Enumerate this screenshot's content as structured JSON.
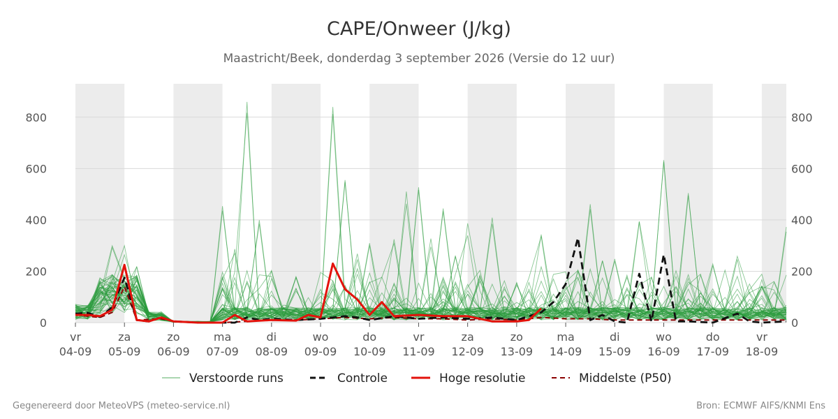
{
  "chart_data": {
    "type": "line",
    "title": "CAPE/Onweer (J/kg)",
    "subtitle": "Maastricht/Beek, donderdag  3 september 2026 (Versie do 12 uur)",
    "xlabel": "",
    "ylabel": "",
    "ylim": [
      0,
      930
    ],
    "yticks": [
      0,
      200,
      400,
      600,
      800
    ],
    "grid": true,
    "x_unit": "days since 04-09 00:00",
    "xlim": [
      0,
      14.5
    ],
    "day_ticks": [
      {
        "day": "vr",
        "date": "04-09"
      },
      {
        "day": "za",
        "date": "05-09"
      },
      {
        "day": "zo",
        "date": "06-09"
      },
      {
        "day": "ma",
        "date": "07-09"
      },
      {
        "day": "di",
        "date": "08-09"
      },
      {
        "day": "wo",
        "date": "09-09"
      },
      {
        "day": "do",
        "date": "10-09"
      },
      {
        "day": "vr",
        "date": "11-09"
      },
      {
        "day": "za",
        "date": "12-09"
      },
      {
        "day": "zo",
        "date": "13-09"
      },
      {
        "day": "ma",
        "date": "14-09"
      },
      {
        "day": "di",
        "date": "15-09"
      },
      {
        "day": "wo",
        "date": "16-09"
      },
      {
        "day": "do",
        "date": "17-09"
      },
      {
        "day": "vr",
        "date": "18-09"
      }
    ],
    "weekend_shading": [
      [
        0,
        1
      ],
      [
        2,
        3
      ],
      [
        4,
        5
      ],
      [
        6,
        7
      ],
      [
        8,
        9
      ],
      [
        10,
        11
      ],
      [
        12,
        13
      ],
      [
        14,
        15
      ]
    ],
    "series": [
      {
        "name": "Controle",
        "style": "dashed",
        "color": "#111111",
        "points": [
          [
            0,
            35
          ],
          [
            0.25,
            38
          ],
          [
            0.5,
            22
          ],
          [
            0.75,
            60
          ],
          [
            1,
            175
          ],
          [
            1.25,
            10
          ],
          [
            1.5,
            5
          ],
          [
            1.75,
            20
          ],
          [
            2,
            5
          ],
          [
            2.5,
            0
          ],
          [
            3,
            0
          ],
          [
            3.25,
            0
          ],
          [
            3.5,
            20
          ],
          [
            3.75,
            10
          ],
          [
            4,
            15
          ],
          [
            4.5,
            10
          ],
          [
            5,
            15
          ],
          [
            5.5,
            25
          ],
          [
            5.75,
            20
          ],
          [
            6,
            10
          ],
          [
            6.5,
            25
          ],
          [
            7,
            15
          ],
          [
            7.5,
            20
          ],
          [
            8,
            15
          ],
          [
            8.5,
            20
          ],
          [
            9,
            10
          ],
          [
            9.5,
            40
          ],
          [
            9.75,
            80
          ],
          [
            10,
            150
          ],
          [
            10.25,
            330
          ],
          [
            10.5,
            10
          ],
          [
            10.75,
            30
          ],
          [
            11,
            5
          ],
          [
            11.25,
            0
          ],
          [
            11.5,
            190
          ],
          [
            11.75,
            5
          ],
          [
            12,
            265
          ],
          [
            12.25,
            5
          ],
          [
            12.5,
            5
          ],
          [
            13,
            0
          ],
          [
            13.5,
            35
          ],
          [
            13.75,
            5
          ],
          [
            14,
            0
          ],
          [
            14.5,
            5
          ]
        ]
      },
      {
        "name": "Hoge resolutie",
        "style": "solid",
        "color": "#e3120b",
        "points": [
          [
            0,
            30
          ],
          [
            0.25,
            30
          ],
          [
            0.5,
            25
          ],
          [
            0.75,
            50
          ],
          [
            1,
            225
          ],
          [
            1.25,
            10
          ],
          [
            1.5,
            5
          ],
          [
            1.75,
            20
          ],
          [
            2,
            5
          ],
          [
            2.5,
            0
          ],
          [
            3,
            0
          ],
          [
            3.25,
            30
          ],
          [
            3.5,
            5
          ],
          [
            4,
            10
          ],
          [
            4.5,
            8
          ],
          [
            4.75,
            30
          ],
          [
            5,
            20
          ],
          [
            5.25,
            230
          ],
          [
            5.5,
            130
          ],
          [
            5.75,
            90
          ],
          [
            6,
            30
          ],
          [
            6.25,
            80
          ],
          [
            6.5,
            25
          ],
          [
            7,
            30
          ],
          [
            7.5,
            25
          ],
          [
            8,
            25
          ],
          [
            8.5,
            5
          ],
          [
            9,
            5
          ],
          [
            9.25,
            10
          ],
          [
            9.5,
            55
          ]
        ]
      },
      {
        "name": "Middelste (P50)",
        "style": "dashed",
        "color": "#8b0000",
        "points": [
          [
            0,
            30
          ],
          [
            0.5,
            20
          ],
          [
            0.75,
            40
          ],
          [
            1,
            140
          ],
          [
            1.25,
            10
          ],
          [
            1.75,
            15
          ],
          [
            2,
            5
          ],
          [
            2.5,
            0
          ],
          [
            3,
            0
          ],
          [
            3.5,
            5
          ],
          [
            4,
            10
          ],
          [
            4.5,
            10
          ],
          [
            5,
            15
          ],
          [
            5.5,
            20
          ],
          [
            6,
            15
          ],
          [
            6.5,
            20
          ],
          [
            7,
            15
          ],
          [
            7.5,
            15
          ],
          [
            8,
            10
          ],
          [
            8.5,
            15
          ],
          [
            9,
            10
          ],
          [
            9.5,
            20
          ],
          [
            10,
            15
          ],
          [
            10.5,
            15
          ],
          [
            11,
            10
          ],
          [
            11.5,
            10
          ],
          [
            12,
            10
          ],
          [
            12.5,
            10
          ],
          [
            13,
            10
          ],
          [
            13.5,
            10
          ],
          [
            14,
            10
          ],
          [
            14.5,
            10
          ]
        ]
      }
    ],
    "ensemble": {
      "name": "Verstoorde runs",
      "color": "#2a9a3c",
      "peaks": [
        [
          0,
          80
        ],
        [
          0.75,
          310
        ],
        [
          1,
          310
        ],
        [
          1.25,
          235
        ],
        [
          3,
          470
        ],
        [
          3.25,
          300
        ],
        [
          3.5,
          895
        ],
        [
          3.75,
          420
        ],
        [
          4.5,
          195
        ],
        [
          5,
          120
        ],
        [
          5.25,
          925
        ],
        [
          5.5,
          590
        ],
        [
          5.75,
          270
        ],
        [
          6,
          325
        ],
        [
          6.5,
          340
        ],
        [
          6.75,
          520
        ],
        [
          7,
          535
        ],
        [
          7.25,
          330
        ],
        [
          7.5,
          470
        ],
        [
          7.75,
          270
        ],
        [
          8,
          395
        ],
        [
          8.5,
          425
        ],
        [
          9,
          160
        ],
        [
          9.5,
          390
        ],
        [
          10,
          175
        ],
        [
          10.5,
          510
        ],
        [
          10.75,
          280
        ],
        [
          11,
          265
        ],
        [
          11.5,
          395
        ],
        [
          12,
          705
        ],
        [
          12.5,
          530
        ],
        [
          12.75,
          190
        ],
        [
          13,
          240
        ],
        [
          13.5,
          285
        ],
        [
          13.75,
          130
        ],
        [
          14,
          150
        ],
        [
          14.5,
          380
        ]
      ]
    },
    "legend": [
      {
        "label": "Verstoorde runs",
        "style": "thin"
      },
      {
        "label": "Controle",
        "style": "dashed"
      },
      {
        "label": "Hoge resolutie",
        "style": "solid"
      },
      {
        "label": "Middelste (P50)",
        "style": "dashed"
      }
    ],
    "legend_position": "bottom"
  },
  "footer": {
    "left": "Gegenereerd door MeteoVPS (meteo-service.nl)",
    "right": "Bron: ECMWF AIFS/KNMI Ens"
  }
}
